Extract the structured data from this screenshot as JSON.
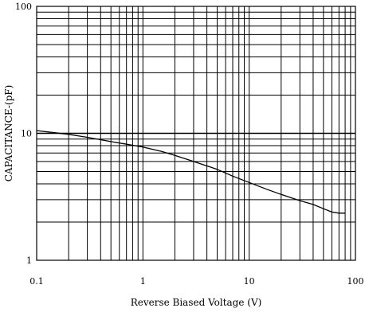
{
  "chart_data": {
    "type": "line",
    "xlabel": "Reverse Biased Voltage (V)",
    "ylabel": "CAPACITANCE-(pF)",
    "x_scale": "log",
    "y_scale": "log",
    "xlim": [
      0.1,
      100
    ],
    "ylim": [
      1,
      100
    ],
    "grid": true,
    "x_ticks": [
      0.1,
      1,
      10,
      100
    ],
    "x_tick_labels": [
      "0.1",
      "1",
      "10",
      "100"
    ],
    "y_ticks": [
      1,
      10,
      100
    ],
    "y_tick_labels": [
      "1",
      "10",
      "100"
    ],
    "series": [
      {
        "color": "#000000",
        "x": [
          0.1,
          0.15,
          0.2,
          0.3,
          0.5,
          0.7,
          1,
          1.5,
          2,
          3,
          5,
          7,
          10,
          15,
          20,
          30,
          40,
          50,
          60,
          70,
          80
        ],
        "y": [
          10.5,
          10.1,
          9.8,
          9.3,
          8.6,
          8.2,
          7.8,
          7.2,
          6.7,
          6.0,
          5.2,
          4.6,
          4.1,
          3.6,
          3.3,
          2.95,
          2.75,
          2.55,
          2.4,
          2.35,
          2.35
        ]
      }
    ]
  }
}
